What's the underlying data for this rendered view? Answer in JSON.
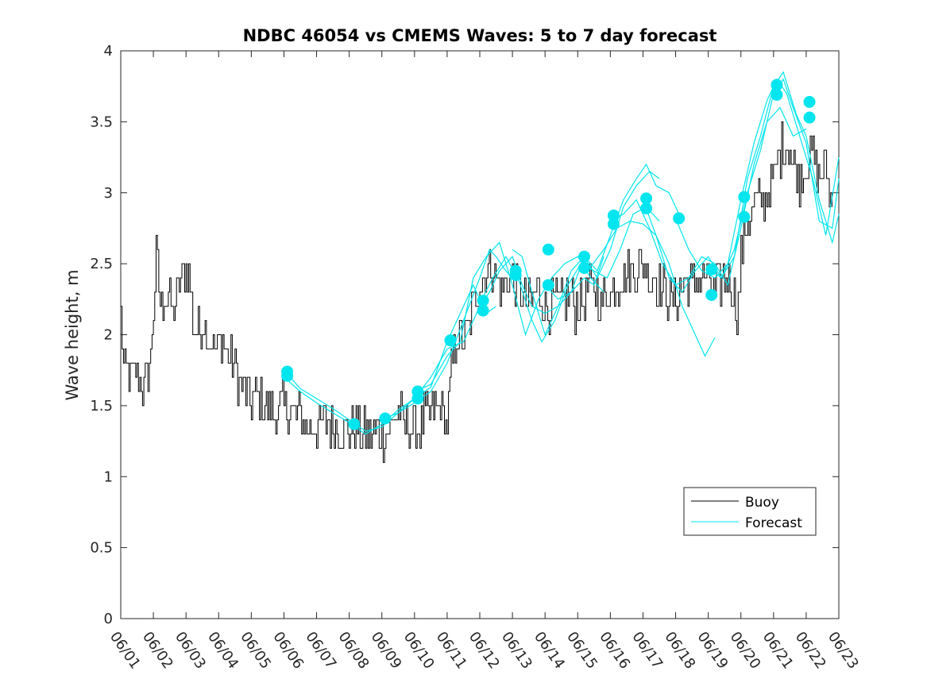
{
  "chart_data": {
    "type": "line",
    "title": "NDBC 46054 vs CMEMS Waves: 5 to 7 day forecast",
    "xlabel": "",
    "ylabel": "Wave height, m",
    "xlim": [
      0,
      22
    ],
    "ylim": [
      0,
      4
    ],
    "x_tick_values": [
      0,
      1,
      2,
      3,
      4,
      5,
      6,
      7,
      8,
      9,
      10,
      11,
      12,
      13,
      14,
      15,
      16,
      17,
      18,
      19,
      20,
      21,
      22
    ],
    "x_tick_labels": [
      "06/01",
      "06/02",
      "06/03",
      "06/04",
      "06/05",
      "06/06",
      "06/07",
      "06/08",
      "06/09",
      "06/10",
      "06/11",
      "06/12",
      "06/13",
      "06/14",
      "06/15",
      "06/16",
      "06/17",
      "06/18",
      "06/19",
      "06/20",
      "06/21",
      "06/22",
      "06/23"
    ],
    "y_tick_values": [
      0,
      0.5,
      1,
      1.5,
      2,
      2.5,
      3,
      3.5,
      4
    ],
    "y_tick_labels": [
      "0",
      "0.5",
      "1",
      "1.5",
      "2",
      "2.5",
      "3",
      "3.5",
      "4"
    ],
    "grid": false,
    "legend": {
      "position": "bottom-right",
      "entries": [
        {
          "name": "Buoy",
          "color": "#000000"
        },
        {
          "name": "Forecast",
          "color": "#00e5ee"
        }
      ]
    },
    "colors": {
      "buoy": "#000000",
      "forecast": "#00e5ee"
    },
    "buoy_anchor_points": [
      [
        0.0,
        2.1
      ],
      [
        0.1,
        1.7
      ],
      [
        0.3,
        1.7
      ],
      [
        0.5,
        1.75
      ],
      [
        0.7,
        1.6
      ],
      [
        0.9,
        1.8
      ],
      [
        1.0,
        2.2
      ],
      [
        1.1,
        2.6
      ],
      [
        1.2,
        2.2
      ],
      [
        1.4,
        2.3
      ],
      [
        1.6,
        2.15
      ],
      [
        1.8,
        2.35
      ],
      [
        2.0,
        2.5
      ],
      [
        2.1,
        2.4
      ],
      [
        2.25,
        2.0
      ],
      [
        2.5,
        2.1
      ],
      [
        2.7,
        2.0
      ],
      [
        2.9,
        1.9
      ],
      [
        3.1,
        1.95
      ],
      [
        3.3,
        1.85
      ],
      [
        3.5,
        1.75
      ],
      [
        3.7,
        1.65
      ],
      [
        3.9,
        1.55
      ],
      [
        4.1,
        1.55
      ],
      [
        4.3,
        1.55
      ],
      [
        4.5,
        1.5
      ],
      [
        4.7,
        1.45
      ],
      [
        4.9,
        1.48
      ],
      [
        5.1,
        1.5
      ],
      [
        5.3,
        1.48
      ],
      [
        5.5,
        1.4
      ],
      [
        5.7,
        1.35
      ],
      [
        6.0,
        1.35
      ],
      [
        6.3,
        1.38
      ],
      [
        6.6,
        1.35
      ],
      [
        6.9,
        1.3
      ],
      [
        7.2,
        1.33
      ],
      [
        7.5,
        1.3
      ],
      [
        7.8,
        1.3
      ],
      [
        8.1,
        1.28
      ],
      [
        8.3,
        1.4
      ],
      [
        8.5,
        1.45
      ],
      [
        8.7,
        1.35
      ],
      [
        9.0,
        1.3
      ],
      [
        9.3,
        1.4
      ],
      [
        9.6,
        1.5
      ],
      [
        9.8,
        1.5
      ],
      [
        10.0,
        1.35
      ],
      [
        10.1,
        1.7
      ],
      [
        10.3,
        2.0
      ],
      [
        10.5,
        1.95
      ],
      [
        10.7,
        2.1
      ],
      [
        10.9,
        2.3
      ],
      [
        11.1,
        2.4
      ],
      [
        11.3,
        2.5
      ],
      [
        11.5,
        2.4
      ],
      [
        11.7,
        2.3
      ],
      [
        11.9,
        2.4
      ],
      [
        12.1,
        2.35
      ],
      [
        12.3,
        2.3
      ],
      [
        12.5,
        2.2
      ],
      [
        12.7,
        2.3
      ],
      [
        12.9,
        2.25
      ],
      [
        13.1,
        2.2
      ],
      [
        13.3,
        2.25
      ],
      [
        13.5,
        2.2
      ],
      [
        13.7,
        2.3
      ],
      [
        13.9,
        2.2
      ],
      [
        14.1,
        2.25
      ],
      [
        14.3,
        2.3
      ],
      [
        14.5,
        2.35
      ],
      [
        14.7,
        2.2
      ],
      [
        14.9,
        2.3
      ],
      [
        15.1,
        2.3
      ],
      [
        15.3,
        2.4
      ],
      [
        15.5,
        2.45
      ],
      [
        15.7,
        2.4
      ],
      [
        15.9,
        2.5
      ],
      [
        16.1,
        2.45
      ],
      [
        16.3,
        2.4
      ],
      [
        16.5,
        2.35
      ],
      [
        16.7,
        2.3
      ],
      [
        16.9,
        2.2
      ],
      [
        17.1,
        2.3
      ],
      [
        17.3,
        2.4
      ],
      [
        17.5,
        2.35
      ],
      [
        17.7,
        2.4
      ],
      [
        17.9,
        2.4
      ],
      [
        18.1,
        2.35
      ],
      [
        18.3,
        2.3
      ],
      [
        18.5,
        2.4
      ],
      [
        18.7,
        2.35
      ],
      [
        18.9,
        2.15
      ],
      [
        19.0,
        2.6
      ],
      [
        19.2,
        2.8
      ],
      [
        19.4,
        2.9
      ],
      [
        19.6,
        2.95
      ],
      [
        19.8,
        3.0
      ],
      [
        20.0,
        3.1
      ],
      [
        20.2,
        3.3
      ],
      [
        20.4,
        3.4
      ],
      [
        20.6,
        3.2
      ],
      [
        20.8,
        3.1
      ],
      [
        21.0,
        3.2
      ],
      [
        21.2,
        3.3
      ],
      [
        21.4,
        3.1
      ],
      [
        21.6,
        3.2
      ],
      [
        21.8,
        2.9
      ]
    ],
    "forecast_series": [
      {
        "points": [
          [
            5.0,
            1.75
          ],
          [
            5.5,
            1.62
          ],
          [
            6.0,
            1.55
          ],
          [
            6.5,
            1.48
          ],
          [
            7.0,
            1.4
          ],
          [
            7.5,
            1.32
          ],
          [
            8.0,
            1.35
          ],
          [
            8.5,
            1.45
          ],
          [
            9.0,
            1.52
          ],
          [
            9.5,
            1.6
          ],
          [
            10.0,
            1.8
          ],
          [
            10.5,
            2.1
          ],
          [
            11.0,
            2.4
          ],
          [
            11.3,
            2.6
          ],
          [
            11.5,
            2.55
          ],
          [
            11.8,
            2.45
          ],
          [
            12.0,
            2.4
          ]
        ]
      },
      {
        "points": [
          [
            5.0,
            1.7
          ],
          [
            5.5,
            1.6
          ],
          [
            6.0,
            1.52
          ],
          [
            6.5,
            1.45
          ],
          [
            7.0,
            1.38
          ],
          [
            7.5,
            1.3
          ],
          [
            8.0,
            1.37
          ],
          [
            8.5,
            1.47
          ],
          [
            9.0,
            1.55
          ],
          [
            9.5,
            1.63
          ],
          [
            10.0,
            1.95
          ],
          [
            10.5,
            2.2
          ],
          [
            10.8,
            2.35
          ],
          [
            11.0,
            2.25
          ],
          [
            11.2,
            2.15
          ],
          [
            11.5,
            2.2
          ]
        ]
      },
      {
        "points": [
          [
            8.0,
            1.4
          ],
          [
            8.5,
            1.45
          ],
          [
            9.0,
            1.55
          ],
          [
            9.5,
            1.7
          ],
          [
            10.0,
            1.9
          ],
          [
            10.5,
            1.95
          ],
          [
            11.0,
            2.2
          ],
          [
            11.3,
            2.3
          ],
          [
            11.6,
            2.45
          ],
          [
            12.0,
            2.55
          ],
          [
            12.3,
            2.35
          ],
          [
            12.6,
            2.2
          ],
          [
            13.0,
            2.15
          ],
          [
            13.4,
            2.2
          ],
          [
            13.8,
            2.3
          ],
          [
            14.2,
            2.4
          ],
          [
            14.5,
            2.35
          ],
          [
            14.8,
            2.55
          ]
        ]
      },
      {
        "points": [
          [
            9.0,
            1.6
          ],
          [
            9.5,
            1.65
          ],
          [
            10.0,
            1.85
          ],
          [
            10.4,
            1.95
          ],
          [
            10.8,
            2.4
          ],
          [
            11.2,
            2.55
          ],
          [
            11.6,
            2.65
          ],
          [
            12.0,
            2.35
          ],
          [
            12.4,
            2.0
          ],
          [
            12.8,
            2.25
          ],
          [
            13.2,
            2.4
          ],
          [
            13.6,
            2.5
          ],
          [
            14.0,
            2.55
          ],
          [
            14.4,
            2.4
          ],
          [
            14.8,
            2.3
          ]
        ]
      },
      {
        "points": [
          [
            11.0,
            2.22
          ],
          [
            11.4,
            2.4
          ],
          [
            11.8,
            2.55
          ],
          [
            12.2,
            2.38
          ],
          [
            12.6,
            2.1
          ],
          [
            12.9,
            1.95
          ],
          [
            13.3,
            2.1
          ],
          [
            13.7,
            2.35
          ],
          [
            14.1,
            2.5
          ],
          [
            14.5,
            2.45
          ],
          [
            14.9,
            2.4
          ],
          [
            15.3,
            2.6
          ],
          [
            15.7,
            2.85
          ],
          [
            16.1,
            2.9
          ],
          [
            16.5,
            2.8
          ]
        ]
      },
      {
        "points": [
          [
            12.0,
            2.6
          ],
          [
            12.3,
            2.55
          ],
          [
            12.6,
            2.3
          ],
          [
            13.0,
            2.0
          ],
          [
            13.4,
            2.2
          ],
          [
            13.8,
            2.45
          ],
          [
            14.2,
            2.55
          ],
          [
            14.6,
            2.4
          ],
          [
            15.0,
            2.6
          ],
          [
            15.4,
            2.9
          ],
          [
            15.8,
            3.05
          ],
          [
            16.2,
            3.15
          ],
          [
            16.5,
            3.1
          ]
        ]
      },
      {
        "points": [
          [
            13.0,
            2.35
          ],
          [
            13.4,
            2.25
          ],
          [
            13.8,
            2.3
          ],
          [
            14.2,
            2.55
          ],
          [
            14.6,
            2.45
          ],
          [
            15.0,
            2.7
          ],
          [
            15.4,
            2.95
          ],
          [
            15.8,
            3.1
          ],
          [
            16.1,
            3.2
          ],
          [
            16.4,
            3.05
          ],
          [
            16.8,
            3.0
          ],
          [
            17.2,
            2.8
          ]
        ]
      },
      {
        "points": [
          [
            14.0,
            2.55
          ],
          [
            14.4,
            2.48
          ],
          [
            14.8,
            2.6
          ],
          [
            15.2,
            2.75
          ],
          [
            15.6,
            2.8
          ],
          [
            16.0,
            2.78
          ],
          [
            16.4,
            2.7
          ],
          [
            16.8,
            2.5
          ],
          [
            17.2,
            2.2
          ],
          [
            17.6,
            2.0
          ],
          [
            17.9,
            1.85
          ],
          [
            18.2,
            1.98
          ]
        ]
      },
      {
        "points": [
          [
            15.0,
            2.8
          ],
          [
            15.4,
            2.85
          ],
          [
            15.8,
            2.95
          ],
          [
            16.2,
            2.75
          ],
          [
            16.6,
            2.5
          ],
          [
            17.0,
            2.35
          ],
          [
            17.4,
            2.4
          ],
          [
            17.8,
            2.55
          ],
          [
            18.2,
            2.5
          ],
          [
            18.6,
            2.35
          ],
          [
            19.0,
            2.75
          ],
          [
            19.4,
            3.2
          ],
          [
            19.8,
            3.5
          ],
          [
            20.2,
            3.6
          ],
          [
            20.6,
            3.4
          ],
          [
            21.0,
            3.45
          ]
        ]
      },
      {
        "points": [
          [
            16.0,
            2.95
          ],
          [
            16.4,
            2.7
          ],
          [
            16.8,
            2.4
          ],
          [
            17.2,
            2.3
          ],
          [
            17.6,
            2.45
          ],
          [
            18.0,
            2.55
          ],
          [
            18.4,
            2.4
          ],
          [
            18.8,
            2.6
          ],
          [
            19.2,
            3.0
          ],
          [
            19.6,
            3.3
          ],
          [
            20.0,
            3.7
          ],
          [
            20.3,
            3.8
          ],
          [
            20.6,
            3.6
          ],
          [
            21.0,
            3.35
          ],
          [
            21.4,
            2.8
          ],
          [
            21.8,
            2.75
          ],
          [
            22.0,
            3.1
          ]
        ]
      },
      {
        "points": [
          [
            17.0,
            2.82
          ],
          [
            17.4,
            2.6
          ],
          [
            17.8,
            2.45
          ],
          [
            18.2,
            2.4
          ],
          [
            18.6,
            2.5
          ],
          [
            19.0,
            2.95
          ],
          [
            19.4,
            3.35
          ],
          [
            19.8,
            3.65
          ],
          [
            20.1,
            3.8
          ],
          [
            20.4,
            3.7
          ],
          [
            20.8,
            3.4
          ],
          [
            21.2,
            3.1
          ],
          [
            21.6,
            2.7
          ],
          [
            22.0,
            3.25
          ]
        ]
      },
      {
        "points": [
          [
            18.0,
            2.47
          ],
          [
            18.4,
            2.4
          ],
          [
            18.8,
            2.55
          ],
          [
            19.2,
            3.1
          ],
          [
            19.6,
            3.4
          ],
          [
            20.0,
            3.75
          ],
          [
            20.3,
            3.85
          ],
          [
            20.7,
            3.55
          ],
          [
            21.0,
            3.4
          ],
          [
            21.4,
            2.95
          ],
          [
            21.8,
            2.65
          ],
          [
            22.0,
            2.85
          ]
        ]
      }
    ],
    "forecast_markers": [
      [
        5.1,
        1.74
      ],
      [
        5.1,
        1.71
      ],
      [
        7.15,
        1.37
      ],
      [
        8.1,
        1.41
      ],
      [
        9.1,
        1.55
      ],
      [
        9.1,
        1.6
      ],
      [
        10.1,
        1.96
      ],
      [
        11.1,
        2.17
      ],
      [
        11.1,
        2.24
      ],
      [
        12.1,
        2.42
      ],
      [
        12.1,
        2.45
      ],
      [
        13.1,
        2.35
      ],
      [
        13.1,
        2.6
      ],
      [
        14.2,
        2.47
      ],
      [
        14.2,
        2.55
      ],
      [
        15.1,
        2.78
      ],
      [
        15.1,
        2.84
      ],
      [
        16.1,
        2.89
      ],
      [
        16.1,
        2.96
      ],
      [
        17.1,
        2.82
      ],
      [
        18.1,
        2.28
      ],
      [
        18.1,
        2.46
      ],
      [
        19.1,
        2.83
      ],
      [
        19.1,
        2.97
      ],
      [
        20.1,
        3.69
      ],
      [
        20.1,
        3.76
      ],
      [
        21.1,
        3.53
      ],
      [
        21.1,
        3.64
      ]
    ]
  }
}
